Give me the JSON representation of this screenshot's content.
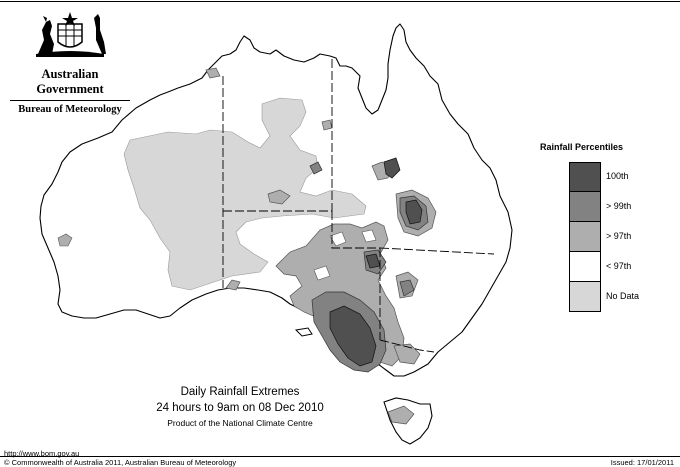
{
  "header": {
    "government": "Australian Government",
    "bureau": "Bureau of Meteorology"
  },
  "legend": {
    "title": "Rainfall Percentiles",
    "items": [
      {
        "label": "100th",
        "color": "#505050"
      },
      {
        "label": "> 99th",
        "color": "#828282"
      },
      {
        "label": "> 97th",
        "color": "#aeaeae"
      },
      {
        "label": "< 97th",
        "color": "#ffffff"
      },
      {
        "label": "No Data",
        "color": "#d7d7d7"
      }
    ]
  },
  "caption": {
    "line1": "Daily Rainfall Extremes",
    "line2": "24 hours to 9am on 08 Dec 2010",
    "line3": "Product of the National Climate Centre"
  },
  "footer": {
    "url": "http://www.bom.gov.au",
    "copyright": "© Commonwealth of Australia 2011, Australian Bureau of Meteorology",
    "issued": "Issued: 17/01/2011"
  },
  "colors": {
    "land": "#ffffff",
    "outline": "#000000",
    "no_data": "#d7d7d7",
    "above_97": "#aeaeae",
    "above_99": "#828282",
    "p100": "#505050"
  }
}
